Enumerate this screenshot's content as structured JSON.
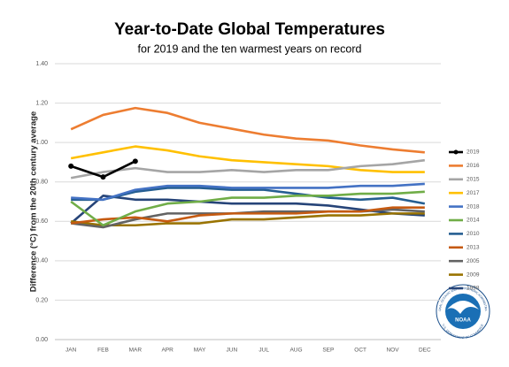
{
  "chart_data": {
    "type": "line",
    "title": "Year-to-Date Global Temperatures",
    "subtitle": "for 2019 and the ten warmest years on record",
    "y_label": "Difference (°C) from the 20th century average",
    "categories": [
      "JAN",
      "FEB",
      "MAR",
      "APR",
      "MAY",
      "JUN",
      "JUL",
      "AUG",
      "SEP",
      "OCT",
      "NOV",
      "DEC"
    ],
    "ylim": [
      0,
      1.4
    ],
    "yticks": [
      {
        "value": 0,
        "label": "0.00"
      },
      {
        "value": 0.2,
        "label": "0.20"
      },
      {
        "value": 0.4,
        "label": "0.40"
      },
      {
        "value": 0.6,
        "label": "0.60"
      },
      {
        "value": 0.8,
        "label": "0.80"
      },
      {
        "value": 1,
        "label": "1.00"
      },
      {
        "value": 1.2,
        "label": "1.20"
      },
      {
        "value": 1.4,
        "label": "1.40"
      }
    ],
    "grid": true,
    "legend": "right",
    "series": [
      {
        "name": "2019",
        "color": "#000000",
        "marker": true,
        "values": [
          0.88,
          0.825,
          0.905,
          null,
          null,
          null,
          null,
          null,
          null,
          null,
          null,
          null
        ]
      },
      {
        "name": "2016",
        "color": "#ed7d31",
        "values": [
          1.067,
          1.14,
          1.175,
          1.15,
          1.1,
          1.07,
          1.04,
          1.02,
          1.01,
          0.985,
          0.965,
          0.95
        ]
      },
      {
        "name": "2015",
        "color": "#a5a5a5",
        "values": [
          0.82,
          0.85,
          0.87,
          0.85,
          0.85,
          0.86,
          0.85,
          0.86,
          0.86,
          0.88,
          0.89,
          0.91
        ]
      },
      {
        "name": "2017",
        "color": "#ffc000",
        "values": [
          0.92,
          0.95,
          0.98,
          0.96,
          0.93,
          0.91,
          0.9,
          0.89,
          0.88,
          0.86,
          0.85,
          0.85
        ]
      },
      {
        "name": "2018",
        "color": "#4472c4",
        "values": [
          0.72,
          0.71,
          0.76,
          0.78,
          0.78,
          0.77,
          0.77,
          0.77,
          0.77,
          0.78,
          0.78,
          0.79
        ]
      },
      {
        "name": "2014",
        "color": "#70ad47",
        "values": [
          0.7,
          0.58,
          0.65,
          0.69,
          0.7,
          0.72,
          0.72,
          0.73,
          0.73,
          0.74,
          0.74,
          0.75
        ]
      },
      {
        "name": "2010",
        "color": "#255e91",
        "values": [
          0.71,
          0.71,
          0.75,
          0.77,
          0.77,
          0.76,
          0.76,
          0.74,
          0.72,
          0.71,
          0.72,
          0.69
        ]
      },
      {
        "name": "2013",
        "color": "#c55a11",
        "values": [
          0.59,
          0.61,
          0.62,
          0.6,
          0.63,
          0.64,
          0.64,
          0.64,
          0.65,
          0.65,
          0.67,
          0.67
        ]
      },
      {
        "name": "2005",
        "color": "#636363",
        "values": [
          0.59,
          0.57,
          0.61,
          0.64,
          0.64,
          0.64,
          0.65,
          0.65,
          0.65,
          0.65,
          0.66,
          0.65
        ]
      },
      {
        "name": "2009",
        "color": "#997300",
        "values": [
          0.6,
          0.58,
          0.58,
          0.59,
          0.59,
          0.61,
          0.61,
          0.62,
          0.63,
          0.63,
          0.64,
          0.64
        ]
      },
      {
        "name": "1998",
        "color": "#264478",
        "values": [
          0.59,
          0.73,
          0.71,
          0.71,
          0.7,
          0.69,
          0.69,
          0.69,
          0.68,
          0.66,
          0.64,
          0.63
        ]
      }
    ]
  },
  "logo": {
    "name": "NOAA",
    "ring_top": "NATIONAL OCEANIC AND ATMOSPHERIC ADMINISTRATION",
    "ring_bottom": "U.S. DEPARTMENT OF COMMERCE"
  }
}
